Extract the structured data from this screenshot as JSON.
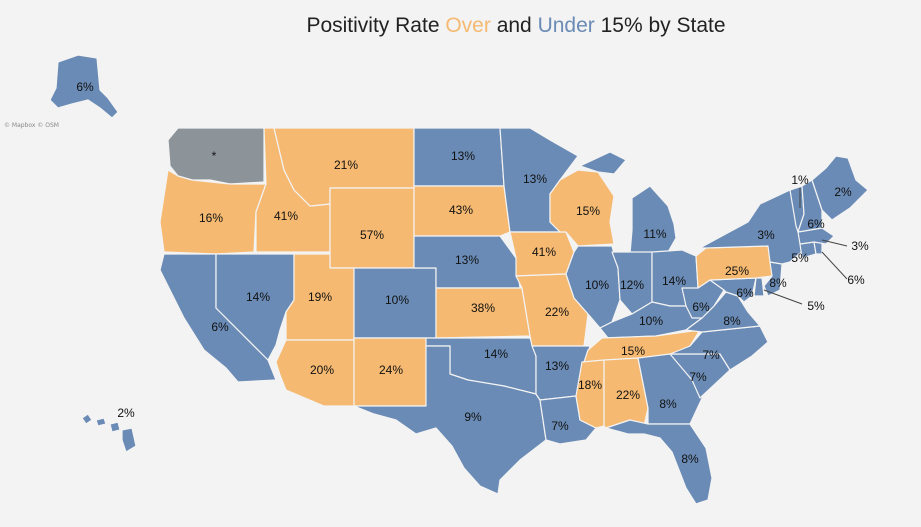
{
  "title": {
    "part1": "Positivity Rate ",
    "over": "Over",
    "part2": " and ",
    "under": "Under",
    "part3": " 15% by State"
  },
  "attribution": "© Mapbox © OSM",
  "colors": {
    "over": "#f5b971",
    "under": "#6a8bb5",
    "no_data": "#8c9399",
    "background": "#f3f3f3"
  },
  "map_data": {
    "threshold_percent": 15,
    "states": [
      {
        "id": "AK",
        "value": "6%",
        "category": "under"
      },
      {
        "id": "HI",
        "value": "2%",
        "category": "under"
      },
      {
        "id": "WA",
        "value": "*",
        "category": "no_data"
      },
      {
        "id": "OR",
        "value": "16%",
        "category": "over"
      },
      {
        "id": "CA",
        "value": "6%",
        "category": "under"
      },
      {
        "id": "ID",
        "value": "41%",
        "category": "over"
      },
      {
        "id": "NV",
        "value": "14%",
        "category": "under"
      },
      {
        "id": "MT",
        "value": "21%",
        "category": "over"
      },
      {
        "id": "WY",
        "value": "57%",
        "category": "over"
      },
      {
        "id": "UT",
        "value": "19%",
        "category": "over"
      },
      {
        "id": "AZ",
        "value": "20%",
        "category": "over"
      },
      {
        "id": "CO",
        "value": "10%",
        "category": "under"
      },
      {
        "id": "NM",
        "value": "24%",
        "category": "over"
      },
      {
        "id": "ND",
        "value": "13%",
        "category": "under"
      },
      {
        "id": "SD",
        "value": "43%",
        "category": "over"
      },
      {
        "id": "NE",
        "value": "13%",
        "category": "under"
      },
      {
        "id": "KS",
        "value": "38%",
        "category": "over"
      },
      {
        "id": "OK",
        "value": "14%",
        "category": "under"
      },
      {
        "id": "TX",
        "value": "9%",
        "category": "under"
      },
      {
        "id": "MN",
        "value": "13%",
        "category": "under"
      },
      {
        "id": "IA",
        "value": "41%",
        "category": "over"
      },
      {
        "id": "MO",
        "value": "22%",
        "category": "over"
      },
      {
        "id": "AR",
        "value": "13%",
        "category": "under"
      },
      {
        "id": "LA",
        "value": "7%",
        "category": "under"
      },
      {
        "id": "WI",
        "value": "15%",
        "category": "over"
      },
      {
        "id": "IL",
        "value": "10%",
        "category": "under"
      },
      {
        "id": "MI",
        "value": "11%",
        "category": "under"
      },
      {
        "id": "IN",
        "value": "12%",
        "category": "under"
      },
      {
        "id": "OH",
        "value": "14%",
        "category": "under"
      },
      {
        "id": "KY",
        "value": "10%",
        "category": "under"
      },
      {
        "id": "TN",
        "value": "15%",
        "category": "over"
      },
      {
        "id": "MS",
        "value": "18%",
        "category": "over"
      },
      {
        "id": "AL",
        "value": "22%",
        "category": "over"
      },
      {
        "id": "GA",
        "value": "8%",
        "category": "under"
      },
      {
        "id": "FL",
        "value": "8%",
        "category": "under"
      },
      {
        "id": "SC",
        "value": "7%",
        "category": "under"
      },
      {
        "id": "NC",
        "value": "7%",
        "category": "under"
      },
      {
        "id": "VA",
        "value": "8%",
        "category": "under"
      },
      {
        "id": "WV",
        "value": "6%",
        "category": "under"
      },
      {
        "id": "MD",
        "value": "6%",
        "category": "under"
      },
      {
        "id": "DE",
        "value": "5%",
        "category": "under"
      },
      {
        "id": "PA",
        "value": "25%",
        "category": "over"
      },
      {
        "id": "NJ",
        "value": "8%",
        "category": "under"
      },
      {
        "id": "NY",
        "value": "3%",
        "category": "under"
      },
      {
        "id": "CT",
        "value": "5%",
        "category": "under"
      },
      {
        "id": "RI",
        "value": "6%",
        "category": "under"
      },
      {
        "id": "MA",
        "value": "3%",
        "category": "under"
      },
      {
        "id": "VT",
        "value": "1%",
        "category": "under"
      },
      {
        "id": "NH",
        "value": "6%",
        "category": "under"
      },
      {
        "id": "ME",
        "value": "2%",
        "category": "under"
      }
    ]
  }
}
